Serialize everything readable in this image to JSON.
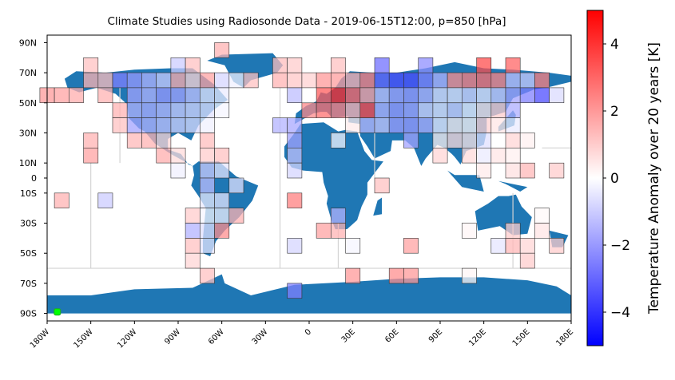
{
  "chart_data": {
    "type": "heatmap",
    "title": "Climate Studies using Radiosonde Data - 2019-06-15T12:00, p=850 [hPa]",
    "xlabel": "",
    "ylabel": "",
    "xlim": [
      -180,
      180
    ],
    "ylim": [
      -95,
      95
    ],
    "x_ticks": [
      {
        "value": -180,
        "label": "180W"
      },
      {
        "value": -150,
        "label": "150W"
      },
      {
        "value": -120,
        "label": "120W"
      },
      {
        "value": -90,
        "label": "90W"
      },
      {
        "value": -60,
        "label": "60W"
      },
      {
        "value": -30,
        "label": "30W"
      },
      {
        "value": 0,
        "label": "0"
      },
      {
        "value": 30,
        "label": "30E"
      },
      {
        "value": 60,
        "label": "60E"
      },
      {
        "value": 90,
        "label": "90E"
      },
      {
        "value": 120,
        "label": "120E"
      },
      {
        "value": 150,
        "label": "150E"
      },
      {
        "value": 180,
        "label": "180E"
      }
    ],
    "y_ticks": [
      {
        "value": 90,
        "label": "90N"
      },
      {
        "value": 70,
        "label": "70N"
      },
      {
        "value": 50,
        "label": "50N"
      },
      {
        "value": 30,
        "label": "30N"
      },
      {
        "value": 10,
        "label": "10N"
      },
      {
        "value": 0,
        "label": "0"
      },
      {
        "value": -10,
        "label": "10S"
      },
      {
        "value": -30,
        "label": "30S"
      },
      {
        "value": -50,
        "label": "50S"
      },
      {
        "value": -70,
        "label": "70S"
      },
      {
        "value": -90,
        "label": "90S"
      }
    ],
    "cell_size_deg": 10,
    "colorbar": {
      "label": "Temperature Anomaly over 20 years [K]",
      "min": -5,
      "max": 5,
      "ticks": [
        {
          "value": 4,
          "label": "4"
        },
        {
          "value": 2,
          "label": "2"
        },
        {
          "value": 0,
          "label": "0"
        },
        {
          "value": -2,
          "label": "−2"
        },
        {
          "value": -4,
          "label": "−4"
        }
      ],
      "colormap": "bwr"
    },
    "cells": [
      [
        -150,
        75,
        1.2
      ],
      [
        -150,
        65,
        1.5
      ],
      [
        -140,
        65,
        1.3
      ],
      [
        -130,
        65,
        -2.5
      ],
      [
        -120,
        65,
        -2.0
      ],
      [
        -110,
        65,
        -1.5
      ],
      [
        -100,
        65,
        -1.0
      ],
      [
        -90,
        65,
        1.6
      ],
      [
        -80,
        65,
        0.8
      ],
      [
        -70,
        65,
        1.8
      ],
      [
        -60,
        65,
        -0.8
      ],
      [
        -50,
        65,
        -0.3
      ],
      [
        -40,
        65,
        1.2
      ],
      [
        -20,
        65,
        1.5
      ],
      [
        -10,
        65,
        1.1
      ],
      [
        0,
        65,
        0.9
      ],
      [
        10,
        65,
        2.0
      ],
      [
        20,
        65,
        1.9
      ],
      [
        30,
        65,
        1.5
      ],
      [
        40,
        65,
        2.5
      ],
      [
        50,
        65,
        -3.0
      ],
      [
        60,
        65,
        -3.5
      ],
      [
        70,
        65,
        -3.5
      ],
      [
        80,
        65,
        -2.5
      ],
      [
        90,
        65,
        -1.5
      ],
      [
        100,
        65,
        2.2
      ],
      [
        110,
        65,
        2.5
      ],
      [
        120,
        65,
        2.8
      ],
      [
        130,
        65,
        2.4
      ],
      [
        140,
        65,
        -1.2
      ],
      [
        150,
        65,
        -1.0
      ],
      [
        160,
        65,
        2.5
      ],
      [
        -90,
        75,
        -1.0
      ],
      [
        -80,
        75,
        1.2
      ],
      [
        -60,
        85,
        1.5
      ],
      [
        -20,
        75,
        1.3
      ],
      [
        -10,
        75,
        1.0
      ],
      [
        20,
        75,
        1.2
      ],
      [
        50,
        75,
        -2.8
      ],
      [
        80,
        75,
        -2.2
      ],
      [
        120,
        75,
        3.5
      ],
      [
        140,
        75,
        3.0
      ],
      [
        -180,
        55,
        2.0
      ],
      [
        -170,
        55,
        1.8
      ],
      [
        -160,
        55,
        1.6
      ],
      [
        -140,
        55,
        1.5
      ],
      [
        -120,
        55,
        -1.8
      ],
      [
        -110,
        55,
        -1.5
      ],
      [
        -100,
        55,
        -2.0
      ],
      [
        -90,
        55,
        -1.8
      ],
      [
        -80,
        55,
        -1.2
      ],
      [
        -70,
        55,
        -0.5
      ],
      [
        -60,
        55,
        -0.4
      ],
      [
        -10,
        55,
        -1.3
      ],
      [
        10,
        55,
        3.2
      ],
      [
        20,
        55,
        4.2
      ],
      [
        30,
        55,
        3.0
      ],
      [
        40,
        55,
        1.8
      ],
      [
        50,
        55,
        -1.2
      ],
      [
        60,
        55,
        -1.8
      ],
      [
        70,
        55,
        -2.0
      ],
      [
        80,
        55,
        -1.5
      ],
      [
        90,
        55,
        -0.6
      ],
      [
        100,
        55,
        -0.5
      ],
      [
        110,
        55,
        -0.8
      ],
      [
        120,
        55,
        -0.5
      ],
      [
        130,
        55,
        -1.0
      ],
      [
        140,
        55,
        -1.8
      ],
      [
        150,
        55,
        -2.5
      ],
      [
        160,
        55,
        -3.5
      ],
      [
        170,
        55,
        -0.7
      ],
      [
        -130,
        45,
        1.5
      ],
      [
        -120,
        45,
        -1.5
      ],
      [
        -110,
        45,
        -1.6
      ],
      [
        -100,
        45,
        -1.4
      ],
      [
        -90,
        45,
        -1.0
      ],
      [
        -80,
        45,
        -0.8
      ],
      [
        -70,
        45,
        -0.6
      ],
      [
        -60,
        45,
        -0.2
      ],
      [
        0,
        45,
        2.3
      ],
      [
        10,
        45,
        2.8
      ],
      [
        20,
        45,
        2.5
      ],
      [
        30,
        45,
        1.5
      ],
      [
        40,
        45,
        3.6
      ],
      [
        50,
        45,
        -1.5
      ],
      [
        60,
        45,
        -2.0
      ],
      [
        70,
        45,
        -1.8
      ],
      [
        80,
        45,
        -0.8
      ],
      [
        90,
        45,
        -0.5
      ],
      [
        100,
        45,
        -0.9
      ],
      [
        110,
        45,
        -0.3
      ],
      [
        120,
        45,
        0.5
      ],
      [
        130,
        45,
        1.0
      ],
      [
        140,
        45,
        -1.6
      ],
      [
        -130,
        35,
        1.2
      ],
      [
        -120,
        35,
        -1.8
      ],
      [
        -110,
        35,
        -1.5
      ],
      [
        -100,
        35,
        -1.2
      ],
      [
        -90,
        35,
        -0.9
      ],
      [
        -80,
        35,
        -0.7
      ],
      [
        -70,
        35,
        -0.3
      ],
      [
        -20,
        35,
        -1.5
      ],
      [
        -10,
        35,
        -1.7
      ],
      [
        30,
        35,
        0.4
      ],
      [
        40,
        35,
        -1.4
      ],
      [
        50,
        35,
        -1.1
      ],
      [
        60,
        35,
        -1.9
      ],
      [
        70,
        35,
        -2.0
      ],
      [
        80,
        35,
        -1.6
      ],
      [
        90,
        35,
        -0.4
      ],
      [
        100,
        35,
        0.3
      ],
      [
        110,
        35,
        0.2
      ],
      [
        120,
        35,
        0.9
      ],
      [
        130,
        35,
        0.5
      ],
      [
        140,
        35,
        -0.4
      ],
      [
        -150,
        25,
        1.5
      ],
      [
        -120,
        25,
        1.4
      ],
      [
        -110,
        25,
        1.5
      ],
      [
        -100,
        25,
        0.8
      ],
      [
        -70,
        25,
        1.3
      ],
      [
        -10,
        25,
        -1.8
      ],
      [
        20,
        25,
        -0.2
      ],
      [
        70,
        25,
        -1.8
      ],
      [
        90,
        25,
        0.3
      ],
      [
        100,
        25,
        0.7
      ],
      [
        110,
        25,
        0.5
      ],
      [
        120,
        25,
        -0.6
      ],
      [
        140,
        25,
        0.8
      ],
      [
        150,
        25,
        0.3
      ],
      [
        -150,
        15,
        1.8
      ],
      [
        -100,
        15,
        1.6
      ],
      [
        -90,
        15,
        0.7
      ],
      [
        -70,
        15,
        1.0
      ],
      [
        -60,
        15,
        1.2
      ],
      [
        -10,
        15,
        -1.2
      ],
      [
        90,
        15,
        0.8
      ],
      [
        110,
        15,
        0.7
      ],
      [
        120,
        15,
        -0.4
      ],
      [
        130,
        15,
        0.5
      ],
      [
        140,
        15,
        0.3
      ],
      [
        -90,
        5,
        -0.3
      ],
      [
        -70,
        5,
        -1.0
      ],
      [
        -60,
        5,
        -0.5
      ],
      [
        -10,
        5,
        -0.8
      ],
      [
        120,
        5,
        0.4
      ],
      [
        140,
        5,
        0.6
      ],
      [
        150,
        5,
        1.4
      ],
      [
        170,
        5,
        1.0
      ],
      [
        -170,
        -15,
        1.5
      ],
      [
        -140,
        -15,
        -1.0
      ],
      [
        -70,
        -5,
        -1.3
      ],
      [
        -50,
        -5,
        -0.6
      ],
      [
        -10,
        -15,
        2.5
      ],
      [
        50,
        -5,
        1.2
      ],
      [
        -70,
        -15,
        -0.4
      ],
      [
        -60,
        -15,
        -0.5
      ],
      [
        -70,
        -25,
        -0.2
      ],
      [
        -60,
        -25,
        -0.3
      ],
      [
        -50,
        -25,
        1.5
      ],
      [
        -80,
        -25,
        1.0
      ],
      [
        20,
        -25,
        -1.5
      ],
      [
        -80,
        -35,
        -1.5
      ],
      [
        -70,
        -35,
        -0.6
      ],
      [
        -60,
        -35,
        2.2
      ],
      [
        10,
        -35,
        1.8
      ],
      [
        20,
        -35,
        1.5
      ],
      [
        110,
        -35,
        0.2
      ],
      [
        140,
        -35,
        1.0
      ],
      [
        160,
        -25,
        0.1
      ],
      [
        -80,
        -45,
        1.2
      ],
      [
        -70,
        -45,
        -0.5
      ],
      [
        -10,
        -45,
        -0.8
      ],
      [
        30,
        -45,
        -0.2
      ],
      [
        70,
        -45,
        1.8
      ],
      [
        130,
        -45,
        -0.5
      ],
      [
        140,
        -45,
        1.4
      ],
      [
        160,
        -35,
        0.5
      ],
      [
        150,
        -45,
        0.8
      ],
      [
        170,
        -45,
        1.0
      ],
      [
        -80,
        -55,
        0.8
      ],
      [
        150,
        -55,
        1.0
      ],
      [
        -70,
        -65,
        1.2
      ],
      [
        30,
        -65,
        2.0
      ],
      [
        60,
        -65,
        2.2
      ],
      [
        70,
        -65,
        2.0
      ],
      [
        110,
        -65,
        0.2
      ],
      [
        -10,
        -75,
        -2.5
      ]
    ]
  },
  "marker": {
    "lon": -173,
    "lat": -89,
    "color": "#00ff00"
  },
  "colors": {
    "land": "#1f77b4",
    "ocean": "#ffffff",
    "boundaries": "#d3d3d3",
    "cell_edge": "#333333"
  }
}
